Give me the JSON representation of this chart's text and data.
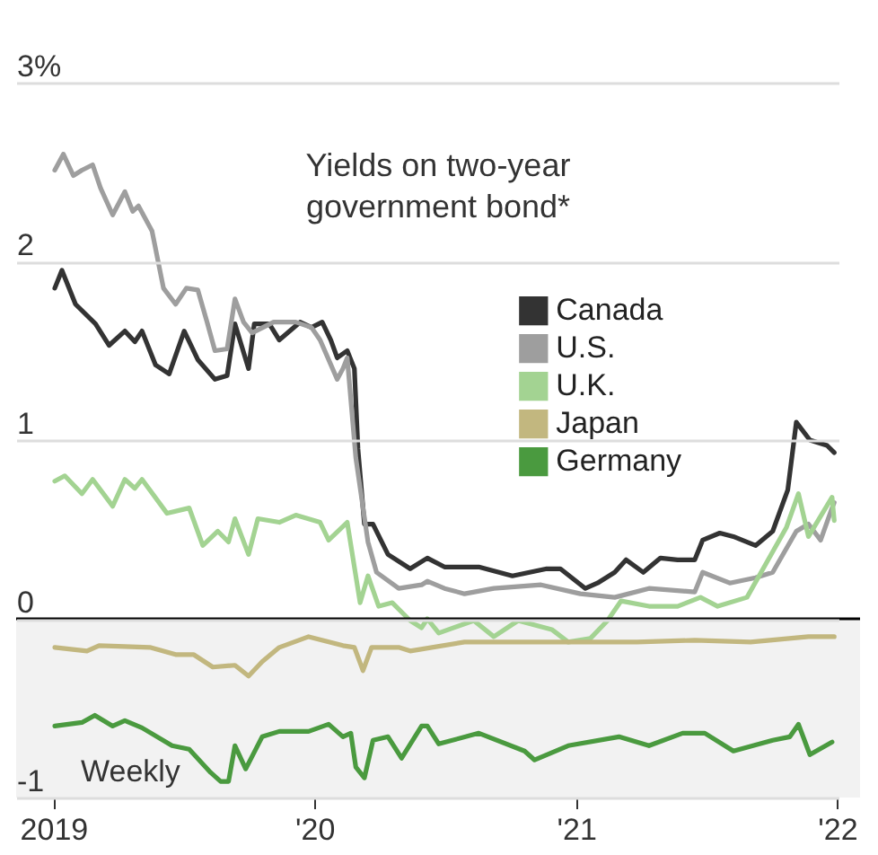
{
  "chart_data": {
    "type": "line",
    "title": "Yields on two-year government bond*",
    "annotations": [
      "Weekly"
    ],
    "xlim": [
      "2018-11-10",
      "2022-01-03"
    ],
    "ylim": [
      -1,
      3
    ],
    "xticks": [
      {
        "value": "2019-01-01",
        "label": "2019"
      },
      {
        "value": "2020-01-01",
        "label": "'20"
      },
      {
        "value": "2021-01-01",
        "label": "'21"
      },
      {
        "value": "2022-01-01",
        "label": "'22"
      }
    ],
    "yticks": [
      {
        "value": 3,
        "label": "3%"
      },
      2,
      1,
      0,
      -1
    ],
    "grid": "y",
    "legend": "right",
    "line_style": "solid",
    "marker": "none",
    "ref_lines": [
      {
        "axis": "y",
        "value": 0,
        "color": "#000000"
      }
    ],
    "bands": [
      {
        "axis": "y",
        "from": -1,
        "to": 0,
        "color": "#f2f2f2"
      }
    ],
    "series": [
      {
        "name": "Canada",
        "color": "#333333",
        "x": [
          "2019-01-03",
          "2019-01-13",
          "2019-02-01",
          "2019-03-01",
          "2019-03-20",
          "2019-04-11",
          "2019-04-25",
          "2019-05-05",
          "2019-05-24",
          "2019-06-12",
          "2019-07-03",
          "2019-07-22",
          "2019-08-15",
          "2019-09-01",
          "2019-09-12",
          "2019-10-01",
          "2019-10-09",
          "2019-10-30",
          "2019-11-13",
          "2019-12-12",
          "2019-12-28",
          "2020-01-12",
          "2020-01-24",
          "2020-02-02",
          "2020-02-16",
          "2020-02-26",
          "2020-03-02",
          "2020-03-11",
          "2020-03-23",
          "2020-04-13",
          "2020-05-14",
          "2020-06-07",
          "2020-07-01",
          "2020-08-18",
          "2020-10-04",
          "2020-11-21",
          "2020-12-10",
          "2021-01-14",
          "2021-01-31",
          "2021-02-24",
          "2021-03-12",
          "2021-04-05",
          "2021-04-29",
          "2021-05-23",
          "2021-06-16",
          "2021-06-27",
          "2021-07-21",
          "2021-08-09",
          "2021-09-09",
          "2021-10-03",
          "2021-10-24",
          "2021-11-05",
          "2021-11-24",
          "2021-12-18",
          "2021-12-28"
        ],
        "values": [
          1.85,
          1.95,
          1.76,
          1.65,
          1.53,
          1.61,
          1.55,
          1.61,
          1.42,
          1.37,
          1.61,
          1.45,
          1.34,
          1.36,
          1.65,
          1.4,
          1.65,
          1.65,
          1.56,
          1.66,
          1.63,
          1.66,
          1.56,
          1.46,
          1.5,
          1.4,
          0.95,
          0.53,
          0.53,
          0.36,
          0.28,
          0.34,
          0.29,
          0.29,
          0.24,
          0.28,
          0.28,
          0.17,
          0.2,
          0.26,
          0.33,
          0.26,
          0.34,
          0.33,
          0.33,
          0.44,
          0.48,
          0.46,
          0.41,
          0.49,
          0.72,
          1.1,
          1.0,
          0.97,
          0.93
        ]
      },
      {
        "name": "U.S.",
        "color": "#9e9e9e",
        "x": [
          "2019-01-03",
          "2019-01-15",
          "2019-01-29",
          "2019-02-10",
          "2019-02-25",
          "2019-03-08",
          "2019-03-25",
          "2019-04-11",
          "2019-04-22",
          "2019-04-30",
          "2019-05-19",
          "2019-06-04",
          "2019-06-21",
          "2019-07-06",
          "2019-07-22",
          "2019-08-04",
          "2019-08-15",
          "2019-09-01",
          "2019-09-12",
          "2019-09-24",
          "2019-10-06",
          "2019-11-05",
          "2019-12-06",
          "2019-12-28",
          "2020-01-09",
          "2020-02-02",
          "2020-02-10",
          "2020-02-16",
          "2020-02-28",
          "2020-03-16",
          "2020-03-28",
          "2020-04-28",
          "2020-05-30",
          "2020-06-07",
          "2020-07-01",
          "2020-07-29",
          "2020-09-08",
          "2020-11-13",
          "2021-01-07",
          "2021-02-24",
          "2021-04-13",
          "2021-06-16",
          "2021-06-27",
          "2021-08-04",
          "2021-09-09",
          "2021-10-03",
          "2021-11-05",
          "2021-11-22",
          "2021-12-09",
          "2021-12-25",
          "2021-12-28"
        ],
        "values": [
          2.51,
          2.6,
          2.48,
          2.51,
          2.54,
          2.41,
          2.26,
          2.39,
          2.28,
          2.31,
          2.17,
          1.85,
          1.76,
          1.85,
          1.84,
          1.66,
          1.5,
          1.51,
          1.79,
          1.66,
          1.6,
          1.66,
          1.66,
          1.63,
          1.56,
          1.34,
          1.4,
          1.46,
          0.9,
          0.43,
          0.26,
          0.17,
          0.19,
          0.21,
          0.17,
          0.14,
          0.17,
          0.19,
          0.14,
          0.12,
          0.17,
          0.15,
          0.26,
          0.2,
          0.23,
          0.26,
          0.49,
          0.53,
          0.44,
          0.62,
          0.65
        ]
      },
      {
        "name": "U.K.",
        "color": "#a3d392",
        "x": [
          "2019-01-03",
          "2019-01-17",
          "2019-02-10",
          "2019-02-25",
          "2019-03-25",
          "2019-04-11",
          "2019-04-25",
          "2019-05-05",
          "2019-06-09",
          "2019-07-10",
          "2019-07-29",
          "2019-08-19",
          "2019-09-03",
          "2019-09-12",
          "2019-10-01",
          "2019-10-14",
          "2019-11-13",
          "2019-12-06",
          "2020-01-09",
          "2020-01-21",
          "2020-02-16",
          "2020-03-05",
          "2020-03-16",
          "2020-03-31",
          "2020-04-19",
          "2020-05-14",
          "2020-05-30",
          "2020-06-07",
          "2020-06-23",
          "2020-08-11",
          "2020-09-08",
          "2020-10-12",
          "2020-11-28",
          "2020-12-21",
          "2021-01-21",
          "2021-02-14",
          "2021-03-05",
          "2021-04-13",
          "2021-05-23",
          "2021-06-24",
          "2021-07-18",
          "2021-08-28",
          "2021-09-21",
          "2021-10-22",
          "2021-11-08",
          "2021-11-22",
          "2021-12-25",
          "2021-12-28"
        ],
        "values": [
          0.77,
          0.8,
          0.7,
          0.78,
          0.63,
          0.78,
          0.73,
          0.78,
          0.59,
          0.62,
          0.41,
          0.49,
          0.43,
          0.56,
          0.36,
          0.56,
          0.54,
          0.58,
          0.54,
          0.44,
          0.54,
          0.09,
          0.24,
          0.07,
          0.09,
          -0.01,
          -0.05,
          0.0,
          -0.08,
          -0.01,
          -0.1,
          -0.01,
          -0.06,
          -0.13,
          -0.11,
          -0.01,
          0.1,
          0.07,
          0.07,
          0.12,
          0.07,
          0.12,
          0.29,
          0.51,
          0.7,
          0.46,
          0.68,
          0.55
        ]
      },
      {
        "name": "Japan",
        "color": "#c2b77f",
        "x": [
          "2019-01-03",
          "2019-02-17",
          "2019-03-06",
          "2019-05-16",
          "2019-06-21",
          "2019-07-16",
          "2019-08-12",
          "2019-09-12",
          "2019-10-01",
          "2019-10-20",
          "2019-11-13",
          "2019-12-24",
          "2020-02-10",
          "2020-02-26",
          "2020-03-09",
          "2020-03-21",
          "2020-04-28",
          "2020-05-14",
          "2020-07-29",
          "2020-10-21",
          "2021-01-07",
          "2021-03-27",
          "2021-06-16",
          "2021-09-02",
          "2021-11-22",
          "2021-12-28"
        ],
        "values": [
          -0.16,
          -0.18,
          -0.15,
          -0.16,
          -0.2,
          -0.2,
          -0.27,
          -0.26,
          -0.32,
          -0.24,
          -0.16,
          -0.1,
          -0.15,
          -0.16,
          -0.29,
          -0.16,
          -0.16,
          -0.18,
          -0.13,
          -0.13,
          -0.13,
          -0.13,
          -0.12,
          -0.13,
          -0.1,
          -0.1
        ]
      },
      {
        "name": "Germany",
        "color": "#4a9a3f",
        "x": [
          "2019-01-03",
          "2019-02-10",
          "2019-02-28",
          "2019-03-25",
          "2019-04-11",
          "2019-05-05",
          "2019-06-16",
          "2019-07-10",
          "2019-08-09",
          "2019-08-23",
          "2019-09-03",
          "2019-09-12",
          "2019-09-27",
          "2019-10-20",
          "2019-11-13",
          "2019-12-24",
          "2020-01-21",
          "2020-02-10",
          "2020-02-21",
          "2020-02-28",
          "2020-03-11",
          "2020-03-23",
          "2020-04-13",
          "2020-05-02",
          "2020-05-30",
          "2020-06-07",
          "2020-06-23",
          "2020-08-18",
          "2020-10-21",
          "2020-11-04",
          "2020-12-21",
          "2021-03-02",
          "2021-04-13",
          "2021-05-30",
          "2021-06-30",
          "2021-08-09",
          "2021-10-03",
          "2021-10-27",
          "2021-11-08",
          "2021-11-24",
          "2021-12-25"
        ],
        "values": [
          -0.6,
          -0.58,
          -0.54,
          -0.6,
          -0.57,
          -0.61,
          -0.71,
          -0.73,
          -0.86,
          -0.91,
          -0.91,
          -0.71,
          -0.84,
          -0.66,
          -0.63,
          -0.63,
          -0.59,
          -0.66,
          -0.64,
          -0.83,
          -0.89,
          -0.68,
          -0.66,
          -0.78,
          -0.6,
          -0.6,
          -0.7,
          -0.64,
          -0.74,
          -0.79,
          -0.71,
          -0.66,
          -0.71,
          -0.64,
          -0.64,
          -0.74,
          -0.68,
          -0.66,
          -0.59,
          -0.76,
          -0.69
        ]
      }
    ]
  }
}
